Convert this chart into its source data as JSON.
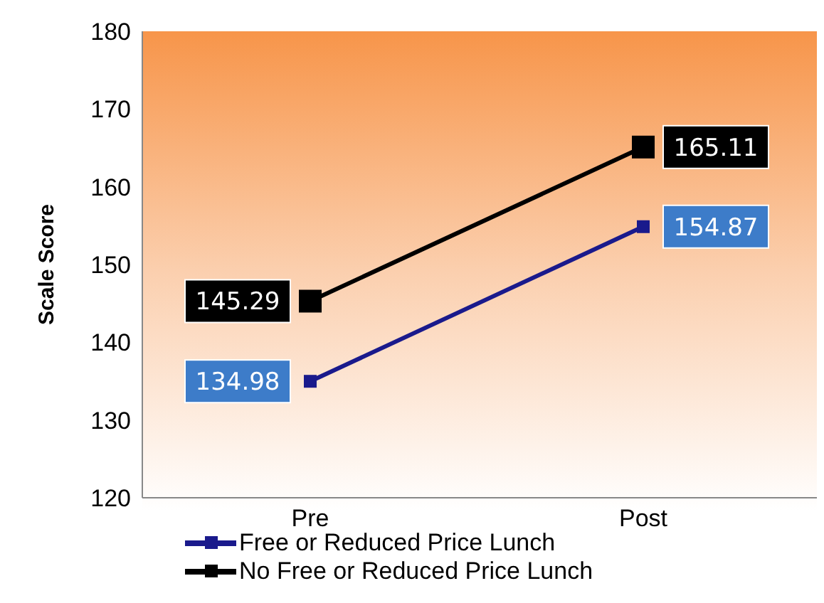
{
  "chart_data": {
    "type": "line",
    "ylabel": "Scale Score",
    "categories": [
      "Pre",
      "Post"
    ],
    "series": [
      {
        "name": "Free or Reduced Price Lunch",
        "color": "#1a1a8c",
        "values": [
          134.98,
          154.87
        ]
      },
      {
        "name": "No Free or Reduced Price Lunch",
        "color": "#000000",
        "values": [
          145.29,
          165.11
        ]
      }
    ],
    "ylim": [
      120,
      180
    ],
    "yticks": [
      120,
      130,
      140,
      150,
      160,
      170,
      180
    ],
    "data_labels": true,
    "marker": "square",
    "legend": "bottom",
    "grid": false
  }
}
